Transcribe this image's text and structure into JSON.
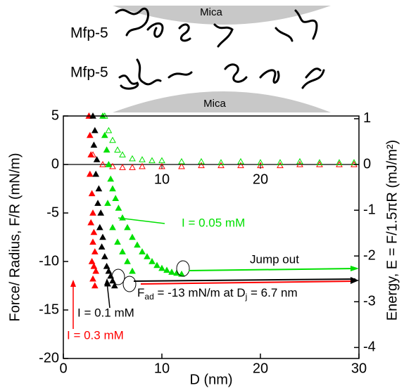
{
  "schematic": {
    "top_surface": "Mica",
    "top_protein": "Mfp-5",
    "bottom_protein": "Mfp-5",
    "bottom_surface": "Mica"
  },
  "chart_data": {
    "type": "scatter",
    "xlabel": "D (nm)",
    "ylabel": "Force/ Radius, F/R (mN/m)",
    "y2label": "Energy, E = F/1.5πR (mJ/m²)",
    "xlim": [
      0,
      30
    ],
    "xticks": [
      0,
      10,
      20,
      30
    ],
    "ylim": [
      -20,
      5
    ],
    "yticks": [
      5,
      0,
      -5,
      -10,
      -15,
      -20
    ],
    "y2lim": [
      -4.24,
      1.06
    ],
    "y2ticks": [
      1,
      0,
      -1,
      -2,
      -3,
      -4
    ],
    "zero_line_ticks": [
      10,
      20
    ],
    "marker": "triangle",
    "series": [
      {
        "color": "#ff0000",
        "filled": false,
        "x": [
          2.6,
          3,
          4,
          5,
          6,
          7,
          8,
          10,
          12,
          14,
          16,
          18,
          20,
          22,
          24,
          26,
          28,
          29.5
        ],
        "values": [
          5,
          1,
          0,
          -0.2,
          -0.3,
          -0.3,
          -0.2,
          -0.2,
          -0.2,
          -0.1,
          -0.1,
          -0.1,
          -0.1,
          -0.1,
          0,
          0,
          0,
          0
        ]
      },
      {
        "color": "#00e000",
        "filled": false,
        "x": [
          4.2,
          4.6,
          5,
          5.5,
          6,
          7,
          8,
          9,
          10,
          12,
          14,
          16,
          18,
          20,
          22,
          24,
          26,
          28,
          29.5
        ],
        "values": [
          5,
          3.5,
          2.5,
          1.5,
          1,
          0.6,
          0.5,
          0.4,
          0.4,
          0.3,
          0.3,
          0.2,
          0.3,
          0.2,
          0.2,
          0.3,
          0.2,
          0.2,
          0.2
        ]
      },
      {
        "color": "#00e000",
        "filled": true,
        "x": [
          4.0,
          4.2,
          4.4,
          4.6,
          4.8,
          5.0,
          5.3,
          5.6,
          6.0,
          6.5,
          7.0,
          7.5,
          8.0,
          8.5,
          9.0,
          9.5,
          10.0,
          10.5,
          11.0,
          11.5,
          12.0,
          4.5,
          5.0,
          5.5,
          6.0,
          6.5,
          7.0
        ],
        "values": [
          5,
          3,
          1.5,
          0,
          -1.5,
          -2.5,
          -3.5,
          -4.5,
          -5.5,
          -6.5,
          -7.5,
          -8.3,
          -9,
          -9.5,
          -10,
          -10.4,
          -10.7,
          -10.9,
          -11.1,
          -11.2,
          -11.3,
          -4,
          -6.5,
          -8,
          -9,
          -10,
          -11
        ]
      },
      {
        "color": "#ff0000",
        "filled": true,
        "x": [
          2.6,
          2.7,
          2.8,
          2.7,
          2.9,
          3.0,
          2.8,
          3.1,
          3.0,
          3.2,
          2.9,
          3.1,
          3.3,
          3.0,
          3.2
        ],
        "values": [
          5,
          3,
          1,
          -1,
          -3,
          -5,
          -6,
          -7,
          -8,
          -9,
          -10,
          -10.5,
          -11,
          -11.8,
          -12.5
        ]
      },
      {
        "color": "#000000",
        "filled": true,
        "x": [
          3.0,
          3.2,
          3.1,
          3.4,
          3.3,
          3.6,
          3.5,
          3.8,
          3.7,
          4.0,
          3.9,
          4.2,
          4.4,
          4.6,
          4.8,
          5.0,
          4.5,
          5.2
        ],
        "values": [
          5,
          3.5,
          2,
          0.5,
          -1,
          -2.5,
          -4,
          -5,
          -6.5,
          -7.5,
          -8.5,
          -9.5,
          -10.5,
          -11,
          -11.5,
          -12,
          -12.3,
          -12.5
        ]
      }
    ],
    "annotations": {
      "green": "I = 0.05 mM",
      "jump": "Jump out",
      "black": "I = 0.1 mM",
      "red": "I = 0.3 mM",
      "fad": [
        "F",
        "ad",
        " = -13 mN/m at D",
        "j",
        " = 6.7 nm"
      ]
    }
  }
}
